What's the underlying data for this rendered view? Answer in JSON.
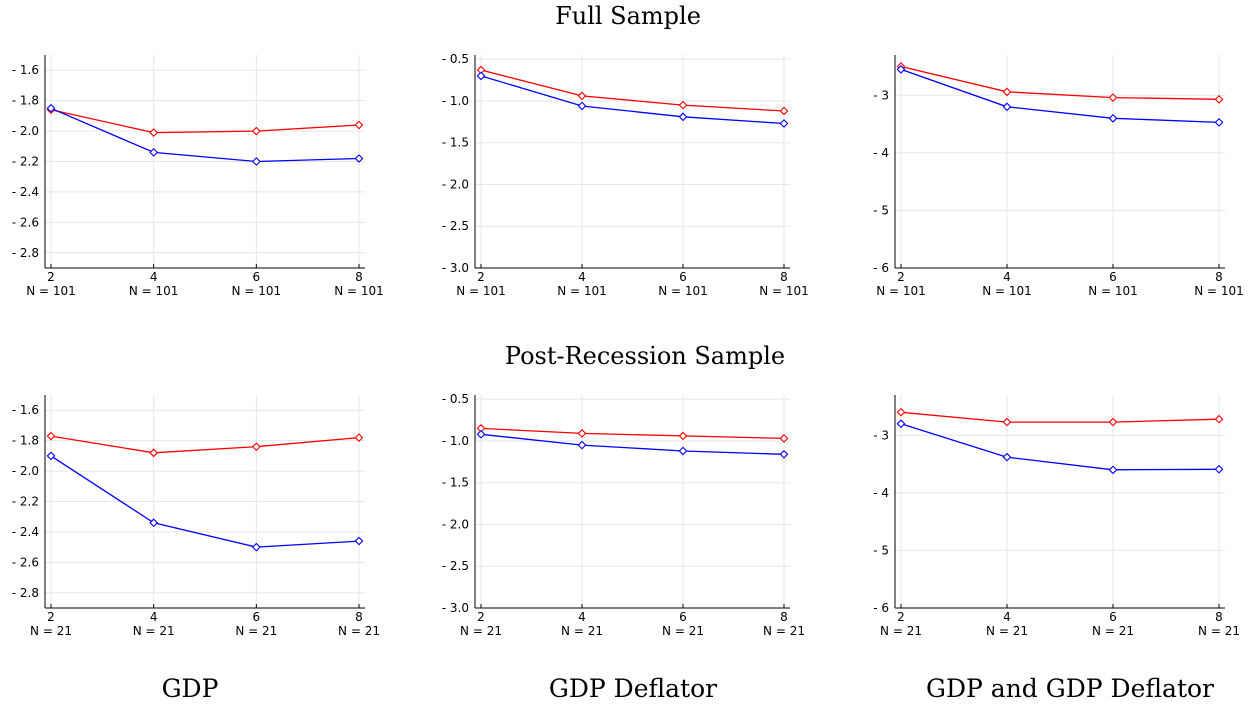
{
  "figure": {
    "row_titles": [
      "Full Sample",
      "Post-Recession Sample"
    ],
    "column_labels": [
      "GDP",
      "GDP Deflator",
      "GDP and GDP Deflator"
    ]
  },
  "colors": {
    "series_a": "#ff0000",
    "series_b": "#0000ff",
    "axis": "#000000",
    "grid": "#e6e6e6"
  },
  "chart_data": [
    {
      "type": "line",
      "row": 0,
      "col": 0,
      "x": [
        2,
        4,
        6,
        8
      ],
      "x_tick_labels": [
        "2",
        "4",
        "6",
        "8"
      ],
      "x_sublabels": [
        "N = 101",
        "N = 101",
        "N = 101",
        "N = 101"
      ],
      "ylim": [
        -2.9,
        -1.5
      ],
      "y_ticks": [
        -1.6,
        -1.8,
        -2.0,
        -2.2,
        -2.4,
        -2.6,
        -2.8
      ],
      "y_tick_labels": [
        "- 1.6",
        "- 1.8",
        "- 2.0",
        "- 2.2",
        "- 2.4",
        "- 2.6",
        "- 2.8"
      ],
      "grid": true,
      "marker": "diamond",
      "series": [
        {
          "values": [
            -1.86,
            -2.01,
            -2.0,
            -1.96
          ],
          "color": "#ff0000"
        },
        {
          "values": [
            -1.85,
            -2.14,
            -2.2,
            -2.18
          ],
          "color": "#0000ff"
        }
      ]
    },
    {
      "type": "line",
      "row": 0,
      "col": 1,
      "x": [
        2,
        4,
        6,
        8
      ],
      "x_tick_labels": [
        "2",
        "4",
        "6",
        "8"
      ],
      "x_sublabels": [
        "N = 101",
        "N = 101",
        "N = 101",
        "N = 101"
      ],
      "ylim": [
        -3.0,
        -0.45
      ],
      "y_ticks": [
        -0.5,
        -1.0,
        -1.5,
        -2.0,
        -2.5,
        -3.0
      ],
      "y_tick_labels": [
        "- 0.5",
        "- 1.0",
        "- 1.5",
        "- 2.0",
        "- 2.5",
        "- 3.0"
      ],
      "grid": true,
      "marker": "diamond",
      "series": [
        {
          "values": [
            -0.63,
            -0.94,
            -1.05,
            -1.12
          ],
          "color": "#ff0000"
        },
        {
          "values": [
            -0.7,
            -1.06,
            -1.19,
            -1.27
          ],
          "color": "#0000ff"
        }
      ]
    },
    {
      "type": "line",
      "row": 0,
      "col": 2,
      "x": [
        2,
        4,
        6,
        8
      ],
      "x_tick_labels": [
        "2",
        "4",
        "6",
        "8"
      ],
      "x_sublabels": [
        "N = 101",
        "N = 101",
        "N = 101",
        "N = 101"
      ],
      "ylim": [
        -6.0,
        -2.3
      ],
      "y_ticks": [
        -3,
        -4,
        -5,
        -6
      ],
      "y_tick_labels": [
        "- 3",
        "- 4",
        "- 5",
        "- 6"
      ],
      "grid": true,
      "marker": "diamond",
      "series": [
        {
          "values": [
            -2.5,
            -2.94,
            -3.04,
            -3.07
          ],
          "color": "#ff0000"
        },
        {
          "values": [
            -2.55,
            -3.2,
            -3.4,
            -3.47
          ],
          "color": "#0000ff"
        }
      ]
    },
    {
      "type": "line",
      "row": 1,
      "col": 0,
      "x": [
        2,
        4,
        6,
        8
      ],
      "x_tick_labels": [
        "2",
        "4",
        "6",
        "8"
      ],
      "x_sublabels": [
        "N = 21",
        "N = 21",
        "N = 21",
        "N = 21"
      ],
      "ylim": [
        -2.9,
        -1.5
      ],
      "y_ticks": [
        -1.6,
        -1.8,
        -2.0,
        -2.2,
        -2.4,
        -2.6,
        -2.8
      ],
      "y_tick_labels": [
        "- 1.6",
        "- 1.8",
        "- 2.0",
        "- 2.2",
        "- 2.4",
        "- 2.6",
        "- 2.8"
      ],
      "grid": true,
      "marker": "diamond",
      "series": [
        {
          "values": [
            -1.77,
            -1.88,
            -1.84,
            -1.78
          ],
          "color": "#ff0000"
        },
        {
          "values": [
            -1.9,
            -2.34,
            -2.5,
            -2.46
          ],
          "color": "#0000ff"
        }
      ]
    },
    {
      "type": "line",
      "row": 1,
      "col": 1,
      "x": [
        2,
        4,
        6,
        8
      ],
      "x_tick_labels": [
        "2",
        "4",
        "6",
        "8"
      ],
      "x_sublabels": [
        "N = 21",
        "N = 21",
        "N = 21",
        "N = 21"
      ],
      "ylim": [
        -3.0,
        -0.45
      ],
      "y_ticks": [
        -0.5,
        -1.0,
        -1.5,
        -2.0,
        -2.5,
        -3.0
      ],
      "y_tick_labels": [
        "- 0.5",
        "- 1.0",
        "- 1.5",
        "- 2.0",
        "- 2.5",
        "- 3.0"
      ],
      "grid": true,
      "marker": "diamond",
      "series": [
        {
          "values": [
            -0.85,
            -0.91,
            -0.94,
            -0.97
          ],
          "color": "#ff0000"
        },
        {
          "values": [
            -0.92,
            -1.05,
            -1.12,
            -1.16
          ],
          "color": "#0000ff"
        }
      ]
    },
    {
      "type": "line",
      "row": 1,
      "col": 2,
      "x": [
        2,
        4,
        6,
        8
      ],
      "x_tick_labels": [
        "2",
        "4",
        "6",
        "8"
      ],
      "x_sublabels": [
        "N = 21",
        "N = 21",
        "N = 21",
        "N = 21"
      ],
      "ylim": [
        -6.0,
        -2.3
      ],
      "y_ticks": [
        -3,
        -4,
        -5,
        -6
      ],
      "y_tick_labels": [
        "- 3",
        "- 4",
        "- 5",
        "- 6"
      ],
      "grid": true,
      "marker": "diamond",
      "series": [
        {
          "values": [
            -2.6,
            -2.77,
            -2.77,
            -2.72
          ],
          "color": "#ff0000"
        },
        {
          "values": [
            -2.8,
            -3.38,
            -3.6,
            -3.59
          ],
          "color": "#0000ff"
        }
      ]
    }
  ]
}
